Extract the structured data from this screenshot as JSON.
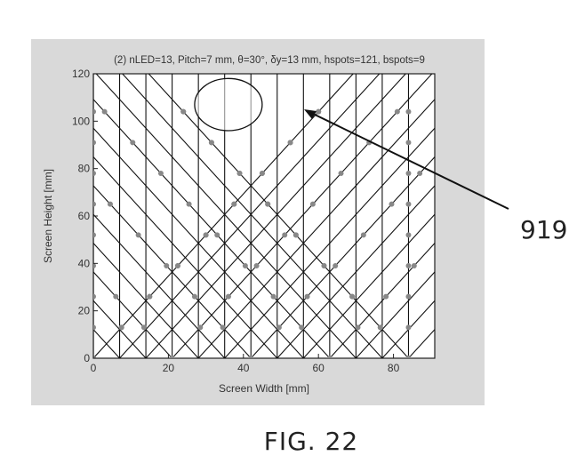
{
  "chart_data": {
    "type": "line",
    "title": "(2) nLED=13, Pitch=7 mm, θ=30°, δy=13 mm, hspots=121, bspots=9",
    "xlabel": "Screen Width [mm]",
    "ylabel": "Screen Height [mm]",
    "xlim": [
      0,
      91
    ],
    "ylim": [
      0,
      120
    ],
    "xticks": [
      0,
      20,
      40,
      60,
      80
    ],
    "yticks": [
      0,
      20,
      40,
      60,
      80,
      100,
      120
    ],
    "grid": false,
    "legend": "none",
    "n_led": 13,
    "pitch_mm": 7,
    "theta_deg": 30,
    "delta_y_mm": 13,
    "hspots": 121,
    "bspots": 9,
    "led_x": [
      0,
      7,
      14,
      21,
      28,
      35,
      42,
      49,
      56,
      63,
      70,
      77,
      84
    ],
    "diagonal_dx_per_dy": 0.577,
    "spot_y_levels": [
      0,
      13,
      26,
      39,
      52,
      65,
      78,
      91,
      104
    ],
    "highlight_ellipse": {
      "center": [
        36,
        107
      ],
      "radii": [
        9,
        11
      ]
    }
  },
  "annotation": {
    "label": "919"
  },
  "caption": "FIG. 22",
  "colors": {
    "panel": "#d9d9d9",
    "lines": "#111111",
    "spots": "#888888"
  }
}
